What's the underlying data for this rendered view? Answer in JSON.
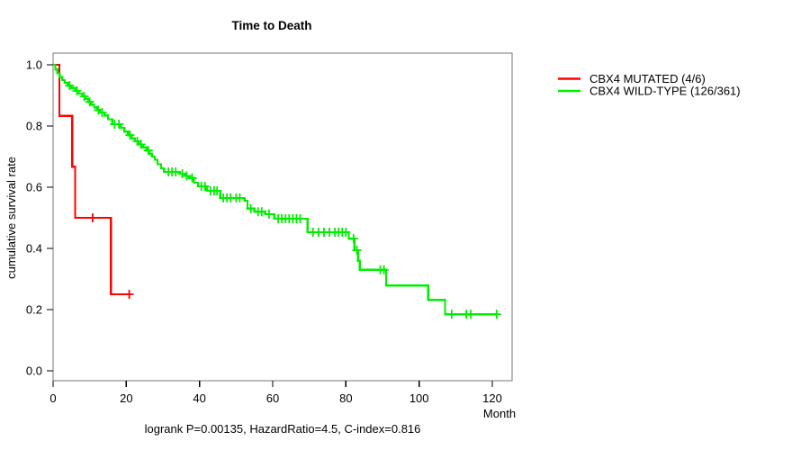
{
  "figure": {
    "background": "#ffffff",
    "axis_box_color": "#777777",
    "tick_color": "#000000",
    "text_color": "#000000"
  },
  "chart_data": {
    "type": "line",
    "subtype": "kaplan_meier_survival_step",
    "title": "Time to Death",
    "xlabel": "Month",
    "ylabel": "cumulative survival rate",
    "annotation": "logrank P=0.00135, HazardRatio=4.5, C-index=0.816",
    "stats": {
      "logrank_p": "0.00135",
      "hazard_ratio": "4.5",
      "c_index": "0.816"
    },
    "xlim": [
      0,
      125.4
    ],
    "ylim": [
      0,
      1
    ],
    "x_ticks": [
      0,
      20,
      40,
      60,
      80,
      100,
      120
    ],
    "y_ticks": [
      0,
      0.2,
      0.4,
      0.6,
      0.8,
      1
    ],
    "grid": false,
    "legend_position": "right-outside",
    "series": [
      {
        "name": "CBX4 MUTATED (4/6)",
        "slug": "mutated",
        "color": "#ff0000",
        "deaths": 4,
        "n": 6,
        "start_survival": 1.0,
        "drops": [
          [
            1.7,
            0.833
          ],
          [
            5.2,
            0.667
          ],
          [
            6.0,
            0.5
          ],
          [
            15.8,
            0.25
          ]
        ],
        "end_time": 21.3,
        "censor_times": [
          10.8,
          20.8
        ]
      },
      {
        "name": "CBX4 WILD-TYPE (126/361)",
        "slug": "wildtype",
        "color": "#00ee00",
        "deaths": 126,
        "n": 361,
        "start_survival": 1.0,
        "drops": [
          [
            0.6,
            0.985
          ],
          [
            1.2,
            0.972
          ],
          [
            1.8,
            0.96
          ],
          [
            2.5,
            0.95
          ],
          [
            3.2,
            0.941
          ],
          [
            4.0,
            0.932
          ],
          [
            5.0,
            0.924
          ],
          [
            6.0,
            0.915
          ],
          [
            7.0,
            0.906
          ],
          [
            8.0,
            0.897
          ],
          [
            8.8,
            0.888
          ],
          [
            9.6,
            0.879
          ],
          [
            10.4,
            0.87
          ],
          [
            11.2,
            0.861
          ],
          [
            12.0,
            0.852
          ],
          [
            12.8,
            0.844
          ],
          [
            14.0,
            0.835
          ],
          [
            15.0,
            0.822
          ],
          [
            16.2,
            0.806
          ],
          [
            18.5,
            0.794
          ],
          [
            19.5,
            0.782
          ],
          [
            20.5,
            0.77
          ],
          [
            21.5,
            0.76
          ],
          [
            22.4,
            0.75
          ],
          [
            23.5,
            0.74
          ],
          [
            24.5,
            0.73
          ],
          [
            25.5,
            0.72
          ],
          [
            26.3,
            0.71
          ],
          [
            27.0,
            0.7
          ],
          [
            27.8,
            0.69
          ],
          [
            28.5,
            0.675
          ],
          [
            29.5,
            0.662
          ],
          [
            30.3,
            0.65
          ],
          [
            34.6,
            0.644
          ],
          [
            36.0,
            0.637
          ],
          [
            37.1,
            0.63
          ],
          [
            38.5,
            0.615
          ],
          [
            39.6,
            0.603
          ],
          [
            42.0,
            0.588
          ],
          [
            45.7,
            0.565
          ],
          [
            52.3,
            0.556
          ],
          [
            53.1,
            0.53
          ],
          [
            55.0,
            0.52
          ],
          [
            58.0,
            0.512
          ],
          [
            60.4,
            0.497
          ],
          [
            69.5,
            0.453
          ],
          [
            80.8,
            0.432
          ],
          [
            82.3,
            0.394
          ],
          [
            83.3,
            0.36
          ],
          [
            83.8,
            0.33
          ],
          [
            91.0,
            0.279
          ],
          [
            102.5,
            0.232
          ],
          [
            107.1,
            0.185
          ]
        ],
        "end_time": 121.3,
        "censor_times": [
          4.5,
          6.5,
          8.5,
          10.0,
          12.4,
          13.4,
          16.8,
          18.0,
          21.0,
          23.0,
          24.0,
          26.0,
          31.5,
          32.5,
          33.5,
          35.3,
          36.5,
          38.0,
          40.5,
          41.5,
          43.0,
          44.0,
          44.8,
          46.5,
          47.5,
          48.5,
          50.0,
          51.0,
          54.0,
          56.0,
          57.0,
          59.0,
          61.5,
          62.5,
          63.5,
          64.5,
          65.5,
          66.5,
          67.5,
          71.0,
          72.5,
          74.0,
          75.5,
          77.0,
          78.0,
          79.0,
          80.0,
          82.1,
          83.0,
          89.4,
          90.4,
          108.9,
          112.9,
          114.1,
          121.2
        ]
      }
    ]
  }
}
